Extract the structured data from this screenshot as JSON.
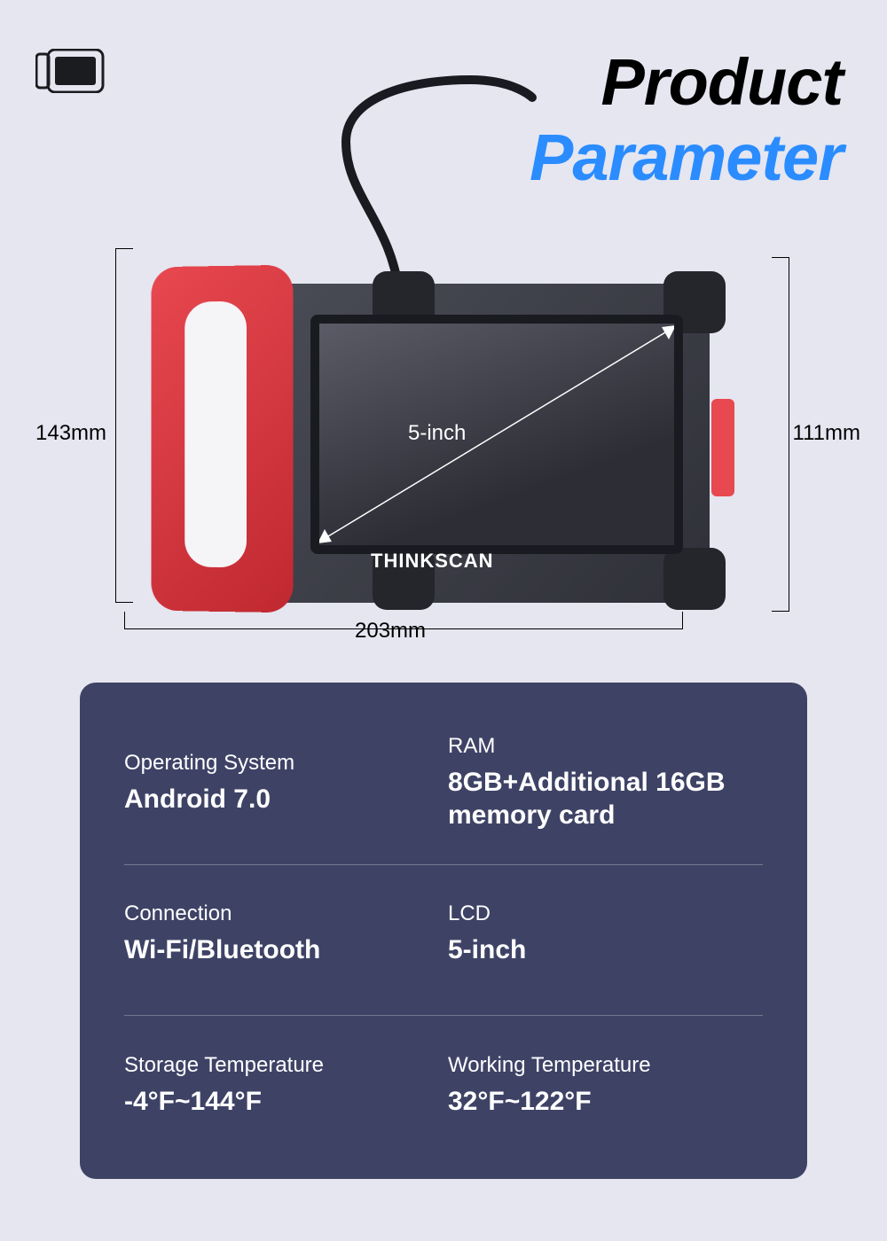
{
  "colors": {
    "page_bg": "#e5e6f0",
    "title_black": "#000000",
    "title_blue": "#2a8cff",
    "spec_card_bg": "#3e4366",
    "spec_text": "#ffffff",
    "device_body": "#3a3b44",
    "device_accent": "#e84850",
    "icon_stroke": "#1b1c20"
  },
  "header": {
    "line1": "Product",
    "line2": "Parameter"
  },
  "diagram": {
    "height_left": "143mm",
    "height_right": "111mm",
    "width_bottom": "203mm",
    "screen_size": "5-inch",
    "brand": "THINKSCAN"
  },
  "specs": {
    "rows": [
      {
        "label": "Operating System",
        "value": "Android 7.0"
      },
      {
        "label": "RAM",
        "value": "8GB+Additional 16GB memory card"
      },
      {
        "label": "Connection",
        "value": "Wi-Fi/Bluetooth"
      },
      {
        "label": "LCD",
        "value": "5-inch"
      },
      {
        "label": "Storage Temperature",
        "value": "-4°F~144°F"
      },
      {
        "label": "Working Temperature",
        "value": "32°F~122°F"
      }
    ]
  }
}
